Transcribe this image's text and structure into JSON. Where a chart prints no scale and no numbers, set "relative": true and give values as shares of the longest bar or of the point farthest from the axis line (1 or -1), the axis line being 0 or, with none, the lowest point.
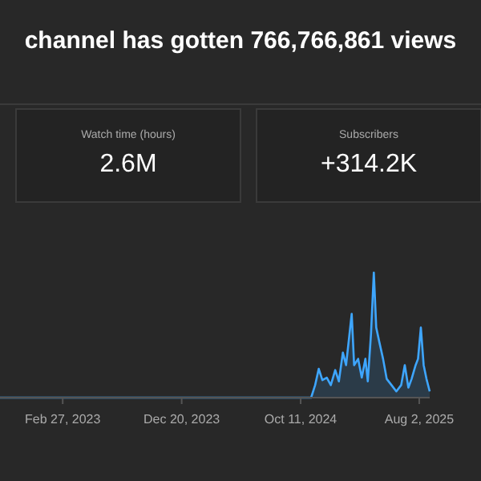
{
  "chart_data": {
    "type": "area",
    "title": "channel has gotten 766,766,861 views",
    "relative": true,
    "annotations": [
      "Watch time (hours)",
      "2.6M",
      "Subscribers",
      "+314.2K"
    ],
    "x": [
      "2022-09-24",
      "2024-11-06",
      "2024-11-16",
      "2024-11-25",
      "2024-12-04",
      "2024-12-15",
      "2024-12-25",
      "2025-01-05",
      "2025-01-14",
      "2025-01-24",
      "2025-02-01",
      "2025-02-15",
      "2025-02-21",
      "2025-03-03",
      "2025-03-12",
      "2025-03-21",
      "2025-03-27",
      "2025-04-04",
      "2025-04-11",
      "2025-04-17",
      "2025-04-25",
      "2025-05-04",
      "2025-05-13",
      "2025-05-25",
      "2025-06-06",
      "2025-06-18",
      "2025-06-27",
      "2025-07-06",
      "2025-07-14",
      "2025-07-24",
      "2025-07-30",
      "2025-08-06",
      "2025-08-13",
      "2025-08-20",
      "2025-08-28"
    ],
    "series": [
      {
        "color": "#3ea6ff",
        "values": [
          0,
          0,
          0.1,
          0.23,
          0.14,
          0.16,
          0.1,
          0.22,
          0.13,
          0.36,
          0.26,
          0.67,
          0.26,
          0.31,
          0.16,
          0.31,
          0.13,
          0.51,
          1,
          0.56,
          0.44,
          0.31,
          0.15,
          0.1,
          0.05,
          0.1,
          0.26,
          0.08,
          0.15,
          0.26,
          0.31,
          0.56,
          0.26,
          0.15,
          0.05
        ]
      }
    ],
    "xlim": [
      "2022-09-24",
      "2025-08-28"
    ],
    "xticks": [
      {
        "value": "2023-02-27",
        "label": "Feb 27, 2023"
      },
      {
        "value": "2023-12-20",
        "label": "Dec 20, 2023"
      },
      {
        "value": "2024-10-11",
        "label": "Oct 11, 2024"
      },
      {
        "value": "2025-08-02",
        "label": "Aug 2, 2025"
      }
    ]
  }
}
